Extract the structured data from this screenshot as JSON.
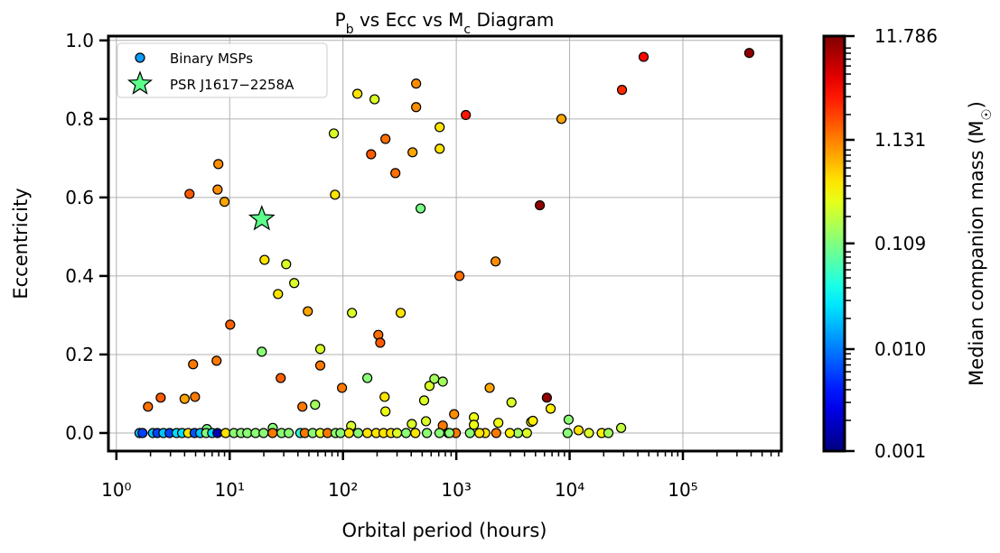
{
  "chart_data": {
    "type": "scatter",
    "title": "P_b vs Ecc vs M_c Diagram",
    "xlabel": "Orbital period (hours)",
    "ylabel": "Eccentricity",
    "xscale": "log",
    "xlim": [
      0.85,
      740000
    ],
    "ylim": [
      -0.046,
      1.011
    ],
    "grid": true,
    "x_ticks": [
      1,
      10,
      100,
      1000,
      10000,
      100000
    ],
    "x_tick_labels": [
      "10⁰",
      "10¹",
      "10²",
      "10³",
      "10⁴",
      "10⁵"
    ],
    "y_ticks": [
      0.0,
      0.2,
      0.4,
      0.6,
      0.8,
      1.0
    ],
    "y_tick_labels": [
      "0.0",
      "0.2",
      "0.4",
      "0.6",
      "0.8",
      "1.0"
    ],
    "legend": {
      "placement": "top-left",
      "entries": [
        "Binary MSPs",
        "PSR J1617−2258A"
      ]
    },
    "colorbar": {
      "label": "Median companion mass (M_☉)",
      "scale": "log",
      "colormap": "jet",
      "range": [
        0.001,
        11.786
      ],
      "ticks": [
        0.001,
        0.01,
        0.109,
        1.131,
        11.786
      ],
      "tick_labels": [
        "0.001",
        "0.010",
        "0.109",
        "1.131",
        "11.786"
      ]
    },
    "series": [
      {
        "name": "Binary MSPs",
        "marker": "circle",
        "columns": [
          "orbital_period_hours",
          "eccentricity",
          "median_companion_mass"
        ],
        "points": [
          [
            385000,
            0.968,
            10
          ],
          [
            45000,
            0.958,
            3.5
          ],
          [
            29000,
            0.874,
            2.5
          ],
          [
            8470,
            0.8,
            0.8
          ],
          [
            1213,
            0.81,
            3
          ],
          [
            442,
            0.89,
            1.0
          ],
          [
            442,
            0.83,
            1.0
          ],
          [
            134,
            0.864,
            0.45
          ],
          [
            190,
            0.85,
            0.25
          ],
          [
            713,
            0.779,
            0.45
          ],
          [
            713,
            0.724,
            0.45
          ],
          [
            237,
            0.749,
            1.3
          ],
          [
            177,
            0.71,
            1.6
          ],
          [
            411,
            0.715,
            0.8
          ],
          [
            290,
            0.662,
            1.3
          ],
          [
            83,
            0.763,
            0.25
          ],
          [
            85,
            0.607,
            0.45
          ],
          [
            484,
            0.572,
            0.1
          ],
          [
            7.94,
            0.685,
            1.0
          ],
          [
            7.82,
            0.62,
            1.0
          ],
          [
            4.42,
            0.609,
            1.6
          ],
          [
            9.0,
            0.589,
            0.8
          ],
          [
            20.3,
            0.441,
            0.45
          ],
          [
            31.5,
            0.43,
            0.25
          ],
          [
            1066,
            0.4,
            1.3
          ],
          [
            2222,
            0.437,
            1.0
          ],
          [
            5460,
            0.58,
            10
          ],
          [
            1.9,
            0.067,
            1.3
          ],
          [
            2.46,
            0.09,
            1.6
          ],
          [
            4.0,
            0.087,
            0.8
          ],
          [
            4.94,
            0.092,
            1.2
          ],
          [
            4.75,
            0.175,
            1.2
          ],
          [
            7.66,
            0.184,
            1.2
          ],
          [
            10.1,
            0.276,
            1.5
          ],
          [
            19.2,
            0.207,
            0.12
          ],
          [
            26.7,
            0.354,
            0.45
          ],
          [
            37.1,
            0.382,
            0.25
          ],
          [
            48.9,
            0.31,
            0.8
          ],
          [
            28.2,
            0.14,
            1.5
          ],
          [
            43.8,
            0.067,
            1.2
          ],
          [
            56.7,
            0.072,
            0.15
          ],
          [
            63,
            0.214,
            0.25
          ],
          [
            63,
            0.172,
            1.2
          ],
          [
            98,
            0.115,
            1.2
          ],
          [
            120,
            0.306,
            0.25
          ],
          [
            164,
            0.14,
            0.12
          ],
          [
            205,
            0.25,
            1.3
          ],
          [
            213,
            0.23,
            1.6
          ],
          [
            233,
            0.092,
            0.45
          ],
          [
            237,
            0.055,
            0.3
          ],
          [
            323,
            0.306,
            0.45
          ],
          [
            520,
            0.083,
            0.25
          ],
          [
            580,
            0.12,
            0.25
          ],
          [
            640,
            0.138,
            0.15
          ],
          [
            760,
            0.131,
            0.15
          ],
          [
            405,
            0.023,
            0.25
          ],
          [
            540,
            0.03,
            0.25
          ],
          [
            760,
            0.019,
            1.2
          ],
          [
            118,
            0.018,
            0.25
          ],
          [
            24,
            0.013,
            0.12
          ],
          [
            6.3,
            0.01,
            0.1
          ],
          [
            1970,
            0.115,
            0.8
          ],
          [
            3070,
            0.078,
            0.25
          ],
          [
            6300,
            0.09,
            10
          ],
          [
            6800,
            0.062,
            0.4
          ],
          [
            957,
            0.048,
            1.0
          ],
          [
            1430,
            0.04,
            0.3
          ],
          [
            1430,
            0.021,
            0.3
          ],
          [
            2350,
            0.026,
            0.3
          ],
          [
            4570,
            0.028,
            0.35
          ],
          [
            4740,
            0.031,
            0.4
          ],
          [
            9800,
            0.034,
            0.12
          ],
          [
            12000,
            0.007,
            0.45
          ],
          [
            28500,
            0.013,
            0.2
          ],
          [
            9600,
            0.0,
            0.12
          ],
          [
            14800,
            0.0,
            0.25
          ],
          [
            19200,
            0.0,
            0.4
          ],
          [
            22000,
            0.0,
            0.15
          ],
          [
            4200,
            0.0,
            0.25
          ],
          [
            3500,
            0.0,
            0.15
          ],
          [
            2970,
            0.0,
            0.4
          ],
          [
            2250,
            0.0,
            1.2
          ],
          [
            1800,
            0.0,
            0.45
          ],
          [
            1600,
            0.0,
            0.45
          ],
          [
            1320,
            0.0,
            0.12
          ],
          [
            990,
            0.0,
            1.2
          ],
          [
            850,
            0.0,
            0.25
          ],
          [
            1.6,
            0.0,
            0.02
          ],
          [
            1.7,
            0.0,
            0.006
          ],
          [
            2.1,
            0.0,
            0.02
          ],
          [
            2.3,
            0.0,
            0.006
          ],
          [
            2.6,
            0.0,
            0.02
          ],
          [
            2.95,
            0.0,
            0.006
          ],
          [
            3.4,
            0.0,
            0.025
          ],
          [
            3.8,
            0.0,
            0.025
          ],
          [
            4.3,
            0.0,
            0.45
          ],
          [
            4.9,
            0.0,
            0.007
          ],
          [
            5.5,
            0.0,
            0.02
          ],
          [
            6.2,
            0.0,
            0.12
          ],
          [
            7.0,
            0.0,
            0.025
          ],
          [
            7.8,
            0.0,
            0.0015
          ],
          [
            9.2,
            0.0,
            0.45
          ],
          [
            10.9,
            0.0,
            0.12
          ],
          [
            12.6,
            0.0,
            0.12
          ],
          [
            14.3,
            0.0,
            0.12
          ],
          [
            16.9,
            0.0,
            0.12
          ],
          [
            19.9,
            0.0,
            0.12
          ],
          [
            23.9,
            0.0,
            1.2
          ],
          [
            28.7,
            0.0,
            0.12
          ],
          [
            33.2,
            0.0,
            0.12
          ],
          [
            42,
            0.0,
            0.05
          ],
          [
            46,
            0.0,
            1.2
          ],
          [
            54,
            0.0,
            0.12
          ],
          [
            63,
            0.0,
            0.25
          ],
          [
            73,
            0.0,
            1.2
          ],
          [
            86,
            0.0,
            0.12
          ],
          [
            95,
            0.0,
            0.12
          ],
          [
            113,
            0.0,
            0.45
          ],
          [
            136,
            0.0,
            0.12
          ],
          [
            164,
            0.0,
            0.45
          ],
          [
            196,
            0.0,
            0.45
          ],
          [
            228,
            0.0,
            0.45
          ],
          [
            265,
            0.0,
            0.45
          ],
          [
            300,
            0.0,
            0.25
          ],
          [
            360,
            0.0,
            0.12
          ],
          [
            435,
            0.0,
            0.45
          ],
          [
            550,
            0.0,
            0.12
          ],
          [
            710,
            0.0,
            0.12
          ],
          [
            870,
            0.0,
            0.12
          ]
        ]
      },
      {
        "name": "PSR J1617−2258A",
        "marker": "star",
        "color": "#5cff8a",
        "points": [
          [
            19.2,
            0.545
          ]
        ]
      }
    ]
  }
}
